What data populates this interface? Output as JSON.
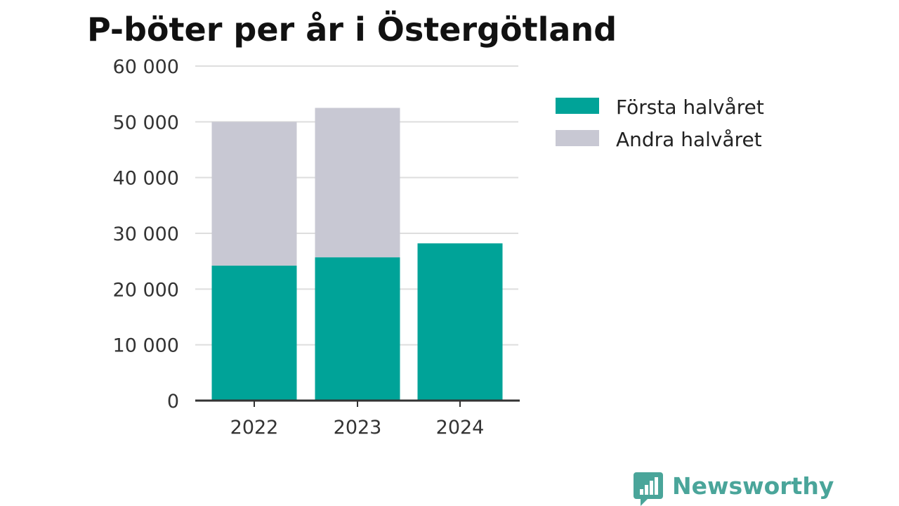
{
  "colors": {
    "first_half": "#00a398",
    "second_half": "#c8c8d3",
    "grid": "#dedede",
    "axis": "#333333",
    "brand": "#4aa59a"
  },
  "brand": {
    "name": "Newsworthy",
    "icon": "bar-chart-speech-bubble-icon"
  },
  "chart_data": {
    "type": "bar",
    "stacked": true,
    "title": "P-böter per år i Östergötland",
    "xlabel": "",
    "ylabel": "",
    "categories": [
      "2022",
      "2023",
      "2024"
    ],
    "series": [
      {
        "name": "Första halvåret",
        "values": [
          24200,
          25700,
          28200
        ]
      },
      {
        "name": "Andra halvåret",
        "values": [
          25800,
          26800,
          null
        ]
      }
    ],
    "ylim": [
      0,
      60000
    ],
    "yticks": [
      0,
      10000,
      20000,
      30000,
      40000,
      50000,
      60000
    ],
    "ytick_labels": [
      "0",
      "10 000",
      "20 000",
      "30 000",
      "40 000",
      "50 000",
      "60 000"
    ],
    "grid": true,
    "legend": "top-right"
  }
}
